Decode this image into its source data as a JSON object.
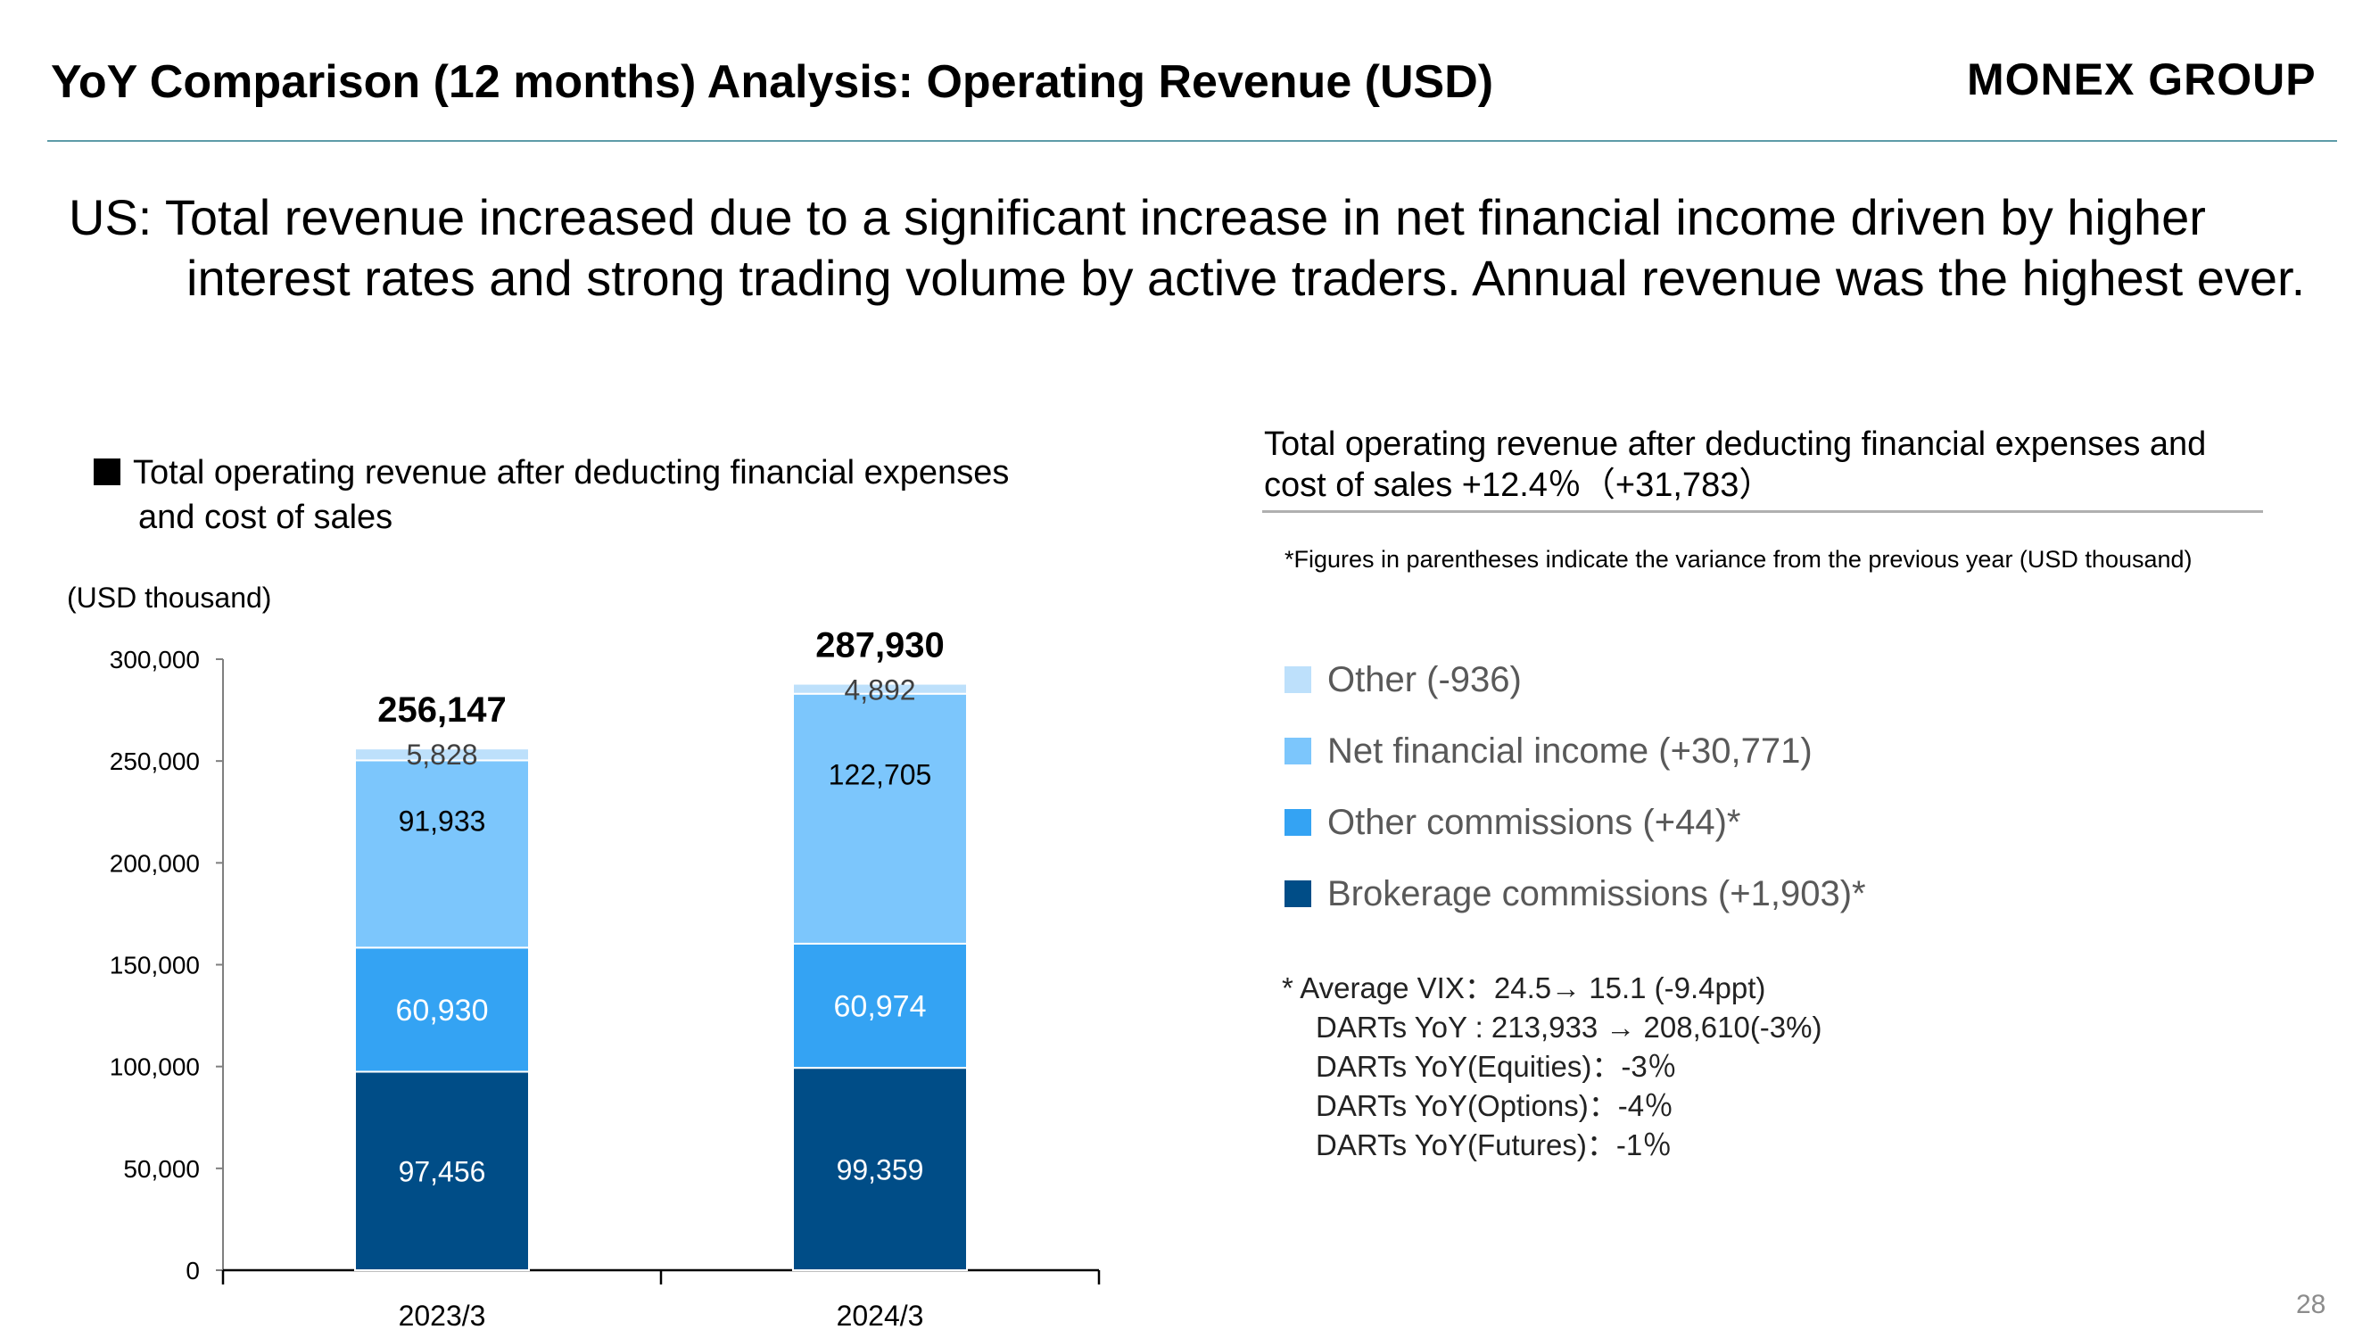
{
  "header": {
    "title": "YoY Comparison (12 months) Analysis: Operating Revenue (USD)",
    "brand": "MONEX GROUP"
  },
  "headline": {
    "line1": "US:  Total revenue increased due to a significant increase in net financial income driven by higher",
    "line2": "interest rates and strong trading volume by active traders.  Annual revenue was the highest ever."
  },
  "left_legend": {
    "line1": "Total operating revenue after deducting financial expenses",
    "line2": "and cost of sales",
    "unit": "(USD thousand)"
  },
  "summary": {
    "text": "Total operating revenue after deducting financial expenses and cost of sales +12.4％（+31,783）",
    "footnote": "*Figures in parentheses indicate the variance from the previous year (USD thousand)"
  },
  "legend": [
    {
      "label": "Other (-936)",
      "color": "#bde0fb"
    },
    {
      "label": "Net financial income (+30,771)",
      "color": "#7cc6fc"
    },
    {
      "label": "Other commissions (+44)*",
      "color": "#34a3f3"
    },
    {
      "label": "Brokerage commissions (+1,903)*",
      "color": "#004d87"
    }
  ],
  "notes": [
    "*    Average VIX：24.5→ 15.1 (-9.4ppt)",
    "DARTs YoY : 213,933 → 208,610(-3%)",
    "DARTs YoY(Equities)：-3％",
    "DARTs YoY(Options)：-4％",
    "DARTs YoY(Futures)：-1％"
  ],
  "page_number": "28",
  "chart_data": {
    "type": "bar",
    "stacked": true,
    "categories": [
      "2023/3",
      "2024/3"
    ],
    "series": [
      {
        "name": "Brokerage commissions",
        "color": "#004d87",
        "values": [
          97456,
          99359
        ],
        "labels": [
          "97,456",
          "99,359"
        ],
        "label_color": "#ffffff"
      },
      {
        "name": "Other commissions",
        "color": "#34a3f3",
        "values": [
          60930,
          60974
        ],
        "labels": [
          "60,930",
          "60,974"
        ],
        "label_color": "#ffffff"
      },
      {
        "name": "Net financial income",
        "color": "#7cc6fc",
        "values": [
          91933,
          122705
        ],
        "labels": [
          "91,933",
          "122,705"
        ],
        "label_color": "#000000"
      },
      {
        "name": "Other",
        "color": "#bde0fb",
        "values": [
          5828,
          4892
        ],
        "labels": [
          "5,828",
          "4,892"
        ],
        "label_color": "#404040"
      }
    ],
    "totals": [
      "256,147",
      "287,930"
    ],
    "ylim": [
      0,
      300000
    ],
    "yticks": [
      0,
      50000,
      100000,
      150000,
      200000,
      250000,
      300000
    ],
    "ytick_labels": [
      "0",
      "50,000",
      "100,000",
      "150,000",
      "200,000",
      "250,000",
      "300,000"
    ],
    "grid": false
  }
}
